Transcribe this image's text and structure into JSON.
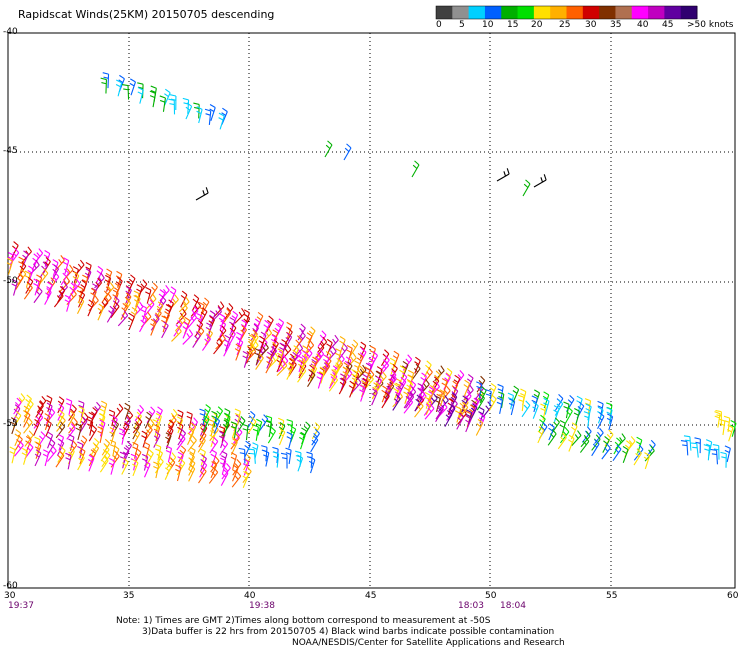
{
  "title": "Rapidscat Winds(25KM) 20150705 descending",
  "colorbar": {
    "labels": [
      "0",
      "5",
      "10",
      "15",
      "20",
      "25",
      "30",
      "35",
      "40",
      "45",
      ">50 knots"
    ],
    "colors": [
      "#404040",
      "#909090",
      "#00d0ff",
      "#0060ff",
      "#00b000",
      "#00e000",
      "#ffe000",
      "#ffb000",
      "#ff6000",
      "#d00000",
      "#803000",
      "#b07050",
      "#ff00ff",
      "#c000c0",
      "#6000a0",
      "#300070"
    ]
  },
  "x_axis": {
    "ticks": [
      "30",
      "35",
      "40",
      "45",
      "50",
      "55",
      "60"
    ]
  },
  "y_axis": {
    "ticks": [
      "-40",
      "-45",
      "-50",
      "-55",
      "-60"
    ]
  },
  "times": [
    "19:37",
    "19:38",
    "18:03",
    "18:04"
  ],
  "notes": {
    "line1": "Note: 1) Times are GMT 2)Times along bottom correspond to measurement at -50S",
    "line2": "3)Data buffer is 22 hrs from 20150705 4) Black wind barbs indicate possible contamination",
    "line3": "NOAA/NESDIS/Center for Satellite Applications and Research"
  },
  "map": {
    "lon_range": [
      30,
      60
    ],
    "lat_range": [
      -40,
      -60
    ],
    "grid": "dotted"
  }
}
